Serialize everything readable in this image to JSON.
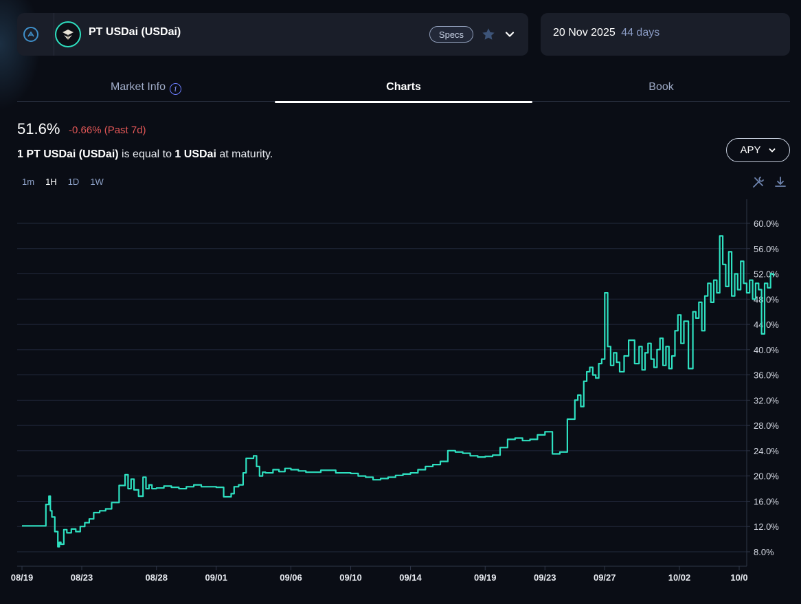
{
  "header": {
    "market_title": "PT USDai (USDai)",
    "specs_label": "Specs",
    "maturity_date": "20 Nov 2025",
    "days_left": "44 days",
    "icons": [
      "network-icon",
      "token-logo-icon",
      "star-icon",
      "chevron-down-icon"
    ]
  },
  "tabs": [
    {
      "label": "Market Info",
      "active": false
    },
    {
      "label": "Charts",
      "active": true
    },
    {
      "label": "Book",
      "active": false
    }
  ],
  "stats": {
    "apy": "51.6%",
    "change": "-0.66% (Past 7d)",
    "note_part1": "1 PT USDai (USDai)",
    "note_part2": " is equal to ",
    "note_part3": "1 USDai",
    "note_part4": " at maturity."
  },
  "metric_select": {
    "label": "APY"
  },
  "intervals": [
    {
      "label": "1m",
      "active": false
    },
    {
      "label": "1H",
      "active": true
    },
    {
      "label": "1D",
      "active": false
    },
    {
      "label": "1W",
      "active": false
    }
  ],
  "colors": {
    "line": "#2ee0c0",
    "negative": "#e05656",
    "background": "#0a0d15",
    "card": "#1a1e29"
  },
  "chart_data": {
    "type": "line",
    "ylim": [
      4,
      64
    ],
    "yticks": [
      "8.0%",
      "12.0%",
      "16.0%",
      "20.0%",
      "24.0%",
      "28.0%",
      "32.0%",
      "36.0%",
      "40.0%",
      "44.0%",
      "48.0%",
      "52.0%",
      "56.0%",
      "60.0%"
    ],
    "ytick_values": [
      8,
      12,
      16,
      20,
      24,
      28,
      32,
      36,
      40,
      44,
      48,
      52,
      56,
      60
    ],
    "xticks": [
      "08/19",
      "08/23",
      "08/28",
      "09/01",
      "09/06",
      "09/10",
      "09/14",
      "09/19",
      "09/23",
      "09/27",
      "10/02",
      "10/0"
    ],
    "xtick_days": [
      0,
      4,
      9,
      13,
      18,
      22,
      26,
      31,
      35,
      39,
      44,
      48
    ],
    "series": [
      {
        "x": [
          0,
          1.5,
          1.6,
          1.8,
          1.9,
          2.0,
          2.2,
          2.4,
          2.5,
          2.6,
          2.8,
          3.0,
          3.3,
          3.6,
          3.9,
          4.2,
          4.5,
          4.8,
          5.2,
          5.6,
          6.0,
          6.5,
          6.9,
          7.1,
          7.3,
          7.5,
          7.8,
          8.1,
          8.3,
          8.5,
          8.7,
          9.0,
          9.5,
          10.0,
          10.5,
          11.0,
          11.5,
          12.0,
          13.0,
          13.5,
          14.0,
          14.2,
          14.5,
          14.8,
          15.0,
          15.5,
          15.7,
          15.9,
          16.1,
          16.3,
          16.8,
          17.2,
          17.6,
          18.0,
          18.5,
          19.0,
          20.0,
          21.0,
          22.0,
          22.5,
          23.0,
          23.5,
          24.0,
          24.5,
          25.0,
          25.5,
          26.0,
          26.5,
          27.0,
          27.5,
          28.0,
          28.5,
          29.0,
          29.5,
          30.0,
          30.5,
          31.0,
          31.5,
          32.0,
          32.5,
          33.0,
          33.5,
          34.0,
          34.5,
          35.0,
          35.5,
          36.0,
          36.5,
          37.0,
          37.2,
          37.4,
          37.6,
          37.8,
          38.0,
          38.2,
          38.4,
          38.6,
          38.8,
          39.0,
          39.2,
          39.4,
          39.6,
          39.8,
          40.0,
          40.3,
          40.6,
          41.0,
          41.3,
          41.5,
          41.7,
          41.9,
          42.1,
          42.3,
          42.5,
          42.7,
          42.9,
          43.1,
          43.3,
          43.5,
          43.7,
          43.9,
          44.1,
          44.3,
          44.6,
          44.9,
          45.1,
          45.3,
          45.5,
          45.7,
          45.9,
          46.1,
          46.3,
          46.5,
          46.7,
          46.9,
          47.1,
          47.3,
          47.5,
          47.7,
          47.9,
          48.1,
          48.3,
          48.5,
          48.7,
          48.9,
          49.1,
          49.3,
          49.5,
          49.7,
          49.9,
          50.1,
          50.3
        ],
        "y": [
          12.1,
          12.1,
          15.5,
          16.8,
          14.5,
          13.5,
          11.2,
          8.8,
          9.5,
          9.2,
          11.5,
          11.0,
          11.6,
          11.2,
          12.0,
          12.6,
          13.2,
          14.2,
          14.5,
          14.8,
          15.8,
          18.5,
          20.2,
          18.0,
          19.5,
          17.8,
          16.8,
          19.8,
          18.0,
          18.6,
          18.0,
          18.1,
          18.4,
          18.2,
          18.0,
          18.3,
          18.6,
          18.3,
          18.2,
          16.7,
          17.2,
          18.3,
          18.6,
          20.5,
          22.8,
          23.2,
          21.5,
          20.0,
          20.6,
          20.5,
          21.0,
          20.7,
          21.2,
          21.0,
          20.8,
          20.6,
          20.9,
          20.5,
          20.4,
          20.0,
          19.8,
          19.4,
          19.6,
          19.8,
          20.1,
          20.3,
          20.5,
          21.0,
          21.5,
          21.8,
          22.3,
          24.0,
          23.8,
          23.6,
          23.2,
          23.0,
          23.1,
          23.3,
          24.5,
          25.8,
          26.0,
          25.6,
          25.8,
          26.5,
          27.0,
          23.5,
          23.8,
          29.0,
          32.0,
          32.8,
          31.0,
          35.0,
          36.5,
          37.2,
          36.0,
          35.5,
          37.8,
          38.5,
          49.0,
          40.5,
          37.5,
          39.5,
          38.0,
          36.5,
          39.0,
          41.5,
          37.8,
          40.5,
          36.8,
          39.5,
          41.0,
          38.5,
          37.2,
          40.0,
          41.8,
          37.5,
          40.5,
          37.0,
          39.0,
          43.0,
          45.5,
          41.0,
          44.5,
          37.0,
          46.0,
          45.0,
          47.5,
          43.0,
          48.5,
          50.5,
          47.5,
          51.0,
          49.0,
          58.0,
          53.5,
          50.0,
          55.5,
          48.5,
          52.0,
          49.5,
          54.0,
          50.5,
          49.0,
          51.0,
          48.0,
          50.5,
          49.5,
          42.5,
          50.5,
          49.8,
          52.0,
          51.6
        ]
      }
    ]
  }
}
